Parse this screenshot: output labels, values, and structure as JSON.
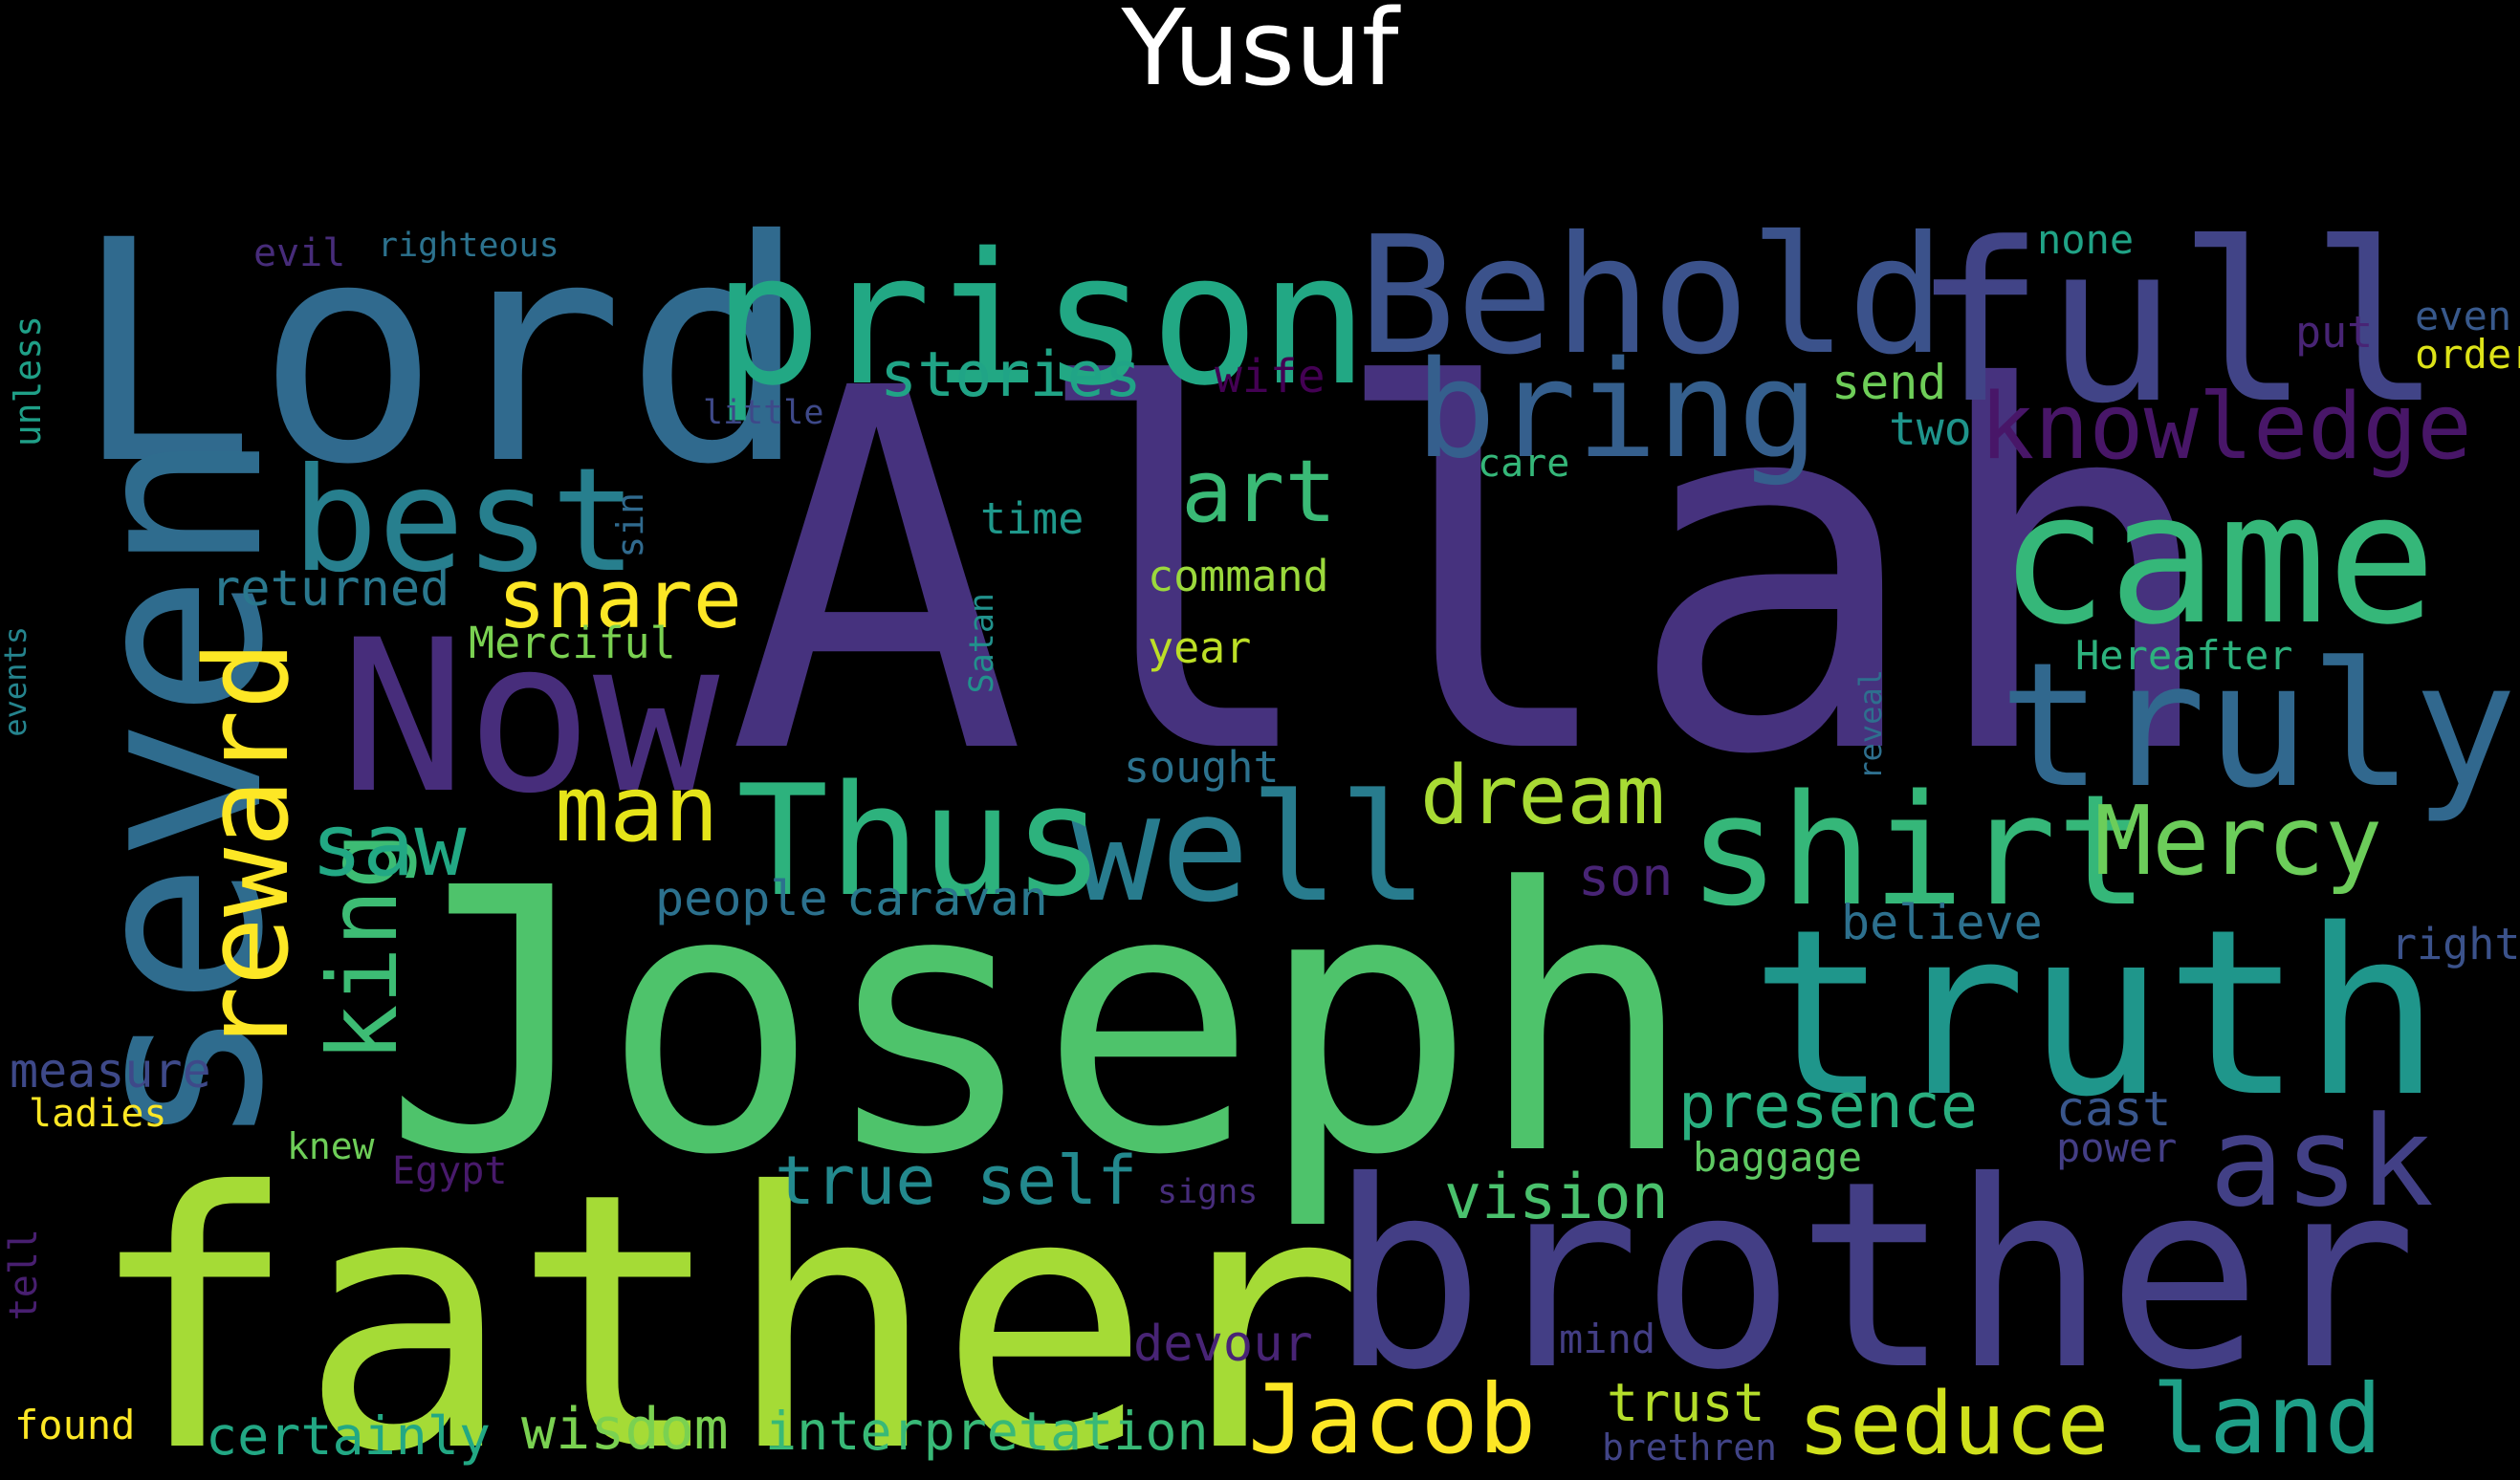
{
  "title": "Yusuf",
  "words": [
    {
      "text": "Allah",
      "color": "#46327e"
    },
    {
      "text": "Joseph",
      "color": "#4ec36b"
    },
    {
      "text": "father",
      "color": "#a5db36"
    },
    {
      "text": "brother",
      "color": "#433e85"
    },
    {
      "text": "Lord",
      "color": "#306a8e"
    },
    {
      "text": "seven",
      "color": "#2f6c8e"
    },
    {
      "text": "truth",
      "color": "#1f968b"
    },
    {
      "text": "prison",
      "color": "#22a884"
    },
    {
      "text": "full",
      "color": "#414487"
    },
    {
      "text": "Behold",
      "color": "#3b528b"
    },
    {
      "text": "came",
      "color": "#35b779"
    },
    {
      "text": "truly",
      "color": "#31688e"
    },
    {
      "text": "Now",
      "color": "#472d7b"
    },
    {
      "text": "bring",
      "color": "#355f8d"
    },
    {
      "text": "best",
      "color": "#277f8e"
    },
    {
      "text": "well",
      "color": "#287c8e"
    },
    {
      "text": "Thus",
      "color": "#2db27d"
    },
    {
      "text": "shirt",
      "color": "#35b779"
    },
    {
      "text": "reward",
      "color": "#fde725"
    },
    {
      "text": "ask",
      "color": "#424086"
    },
    {
      "text": "Mercy",
      "color": "#6ccd5a"
    },
    {
      "text": "knowledge",
      "color": "#481668"
    },
    {
      "text": "king",
      "color": "#3dbc74"
    },
    {
      "text": "Jacob",
      "color": "#fde725"
    },
    {
      "text": "land",
      "color": "#1fa088"
    },
    {
      "text": "seduce",
      "color": "#d0e11c"
    },
    {
      "text": "art",
      "color": "#3aba76"
    },
    {
      "text": "saw",
      "color": "#22a884"
    },
    {
      "text": "snare",
      "color": "#fde725"
    },
    {
      "text": "man",
      "color": "#e5e419"
    },
    {
      "text": "dream",
      "color": "#a8db34"
    },
    {
      "text": "stories",
      "color": "#20a486"
    },
    {
      "text": "presence",
      "color": "#29af7f"
    },
    {
      "text": "true self",
      "color": "#23898e"
    },
    {
      "text": "vision",
      "color": "#4ac16d"
    },
    {
      "text": "wisdom",
      "color": "#7ad151"
    },
    {
      "text": "interpretation",
      "color": "#38b977"
    },
    {
      "text": "certainly",
      "color": "#22a884"
    },
    {
      "text": "trust",
      "color": "#b5de2b"
    },
    {
      "text": "returned",
      "color": "#2a788e"
    },
    {
      "text": "measure",
      "color": "#3e4989"
    },
    {
      "text": "son",
      "color": "#482475"
    },
    {
      "text": "people",
      "color": "#2c718e"
    },
    {
      "text": "caravan",
      "color": "#2a788e"
    },
    {
      "text": "believe",
      "color": "#2d708e"
    },
    {
      "text": "devour",
      "color": "#482475"
    },
    {
      "text": "wife",
      "color": "#440154"
    },
    {
      "text": "send",
      "color": "#6ece58"
    },
    {
      "text": "two",
      "color": "#1f948c"
    },
    {
      "text": "command",
      "color": "#9bd93c"
    },
    {
      "text": "time",
      "color": "#1f988b"
    },
    {
      "text": "year",
      "color": "#bddf26"
    },
    {
      "text": "Merciful",
      "color": "#7ad151"
    },
    {
      "text": "Hereafter",
      "color": "#2db27d"
    },
    {
      "text": "cast",
      "color": "#39568c"
    },
    {
      "text": "power",
      "color": "#433e85"
    },
    {
      "text": "baggage",
      "color": "#5ec962"
    },
    {
      "text": "right",
      "color": "#3b528b"
    },
    {
      "text": "put",
      "color": "#482475"
    },
    {
      "text": "even",
      "color": "#38598c"
    },
    {
      "text": "order",
      "color": "#dde318"
    },
    {
      "text": "none",
      "color": "#20a386"
    },
    {
      "text": "care",
      "color": "#35b779"
    },
    {
      "text": "sought",
      "color": "#2c728e"
    },
    {
      "text": "mind",
      "color": "#433e85"
    },
    {
      "text": "found",
      "color": "#fde725"
    },
    {
      "text": "ladies",
      "color": "#fde725"
    },
    {
      "text": "knew",
      "color": "#6ece58"
    },
    {
      "text": "Egypt",
      "color": "#481a6c"
    },
    {
      "text": "signs",
      "color": "#472d7b"
    },
    {
      "text": "evil",
      "color": "#472c7a"
    },
    {
      "text": "righteous",
      "color": "#2c728e"
    },
    {
      "text": "little",
      "color": "#3e4989"
    },
    {
      "text": "brethren",
      "color": "#414487"
    },
    {
      "text": "unless",
      "color": "#1fa088"
    },
    {
      "text": "sin",
      "color": "#306a8e"
    },
    {
      "text": "Satan",
      "color": "#21918c"
    },
    {
      "text": "events",
      "color": "#25848e"
    },
    {
      "text": "tell",
      "color": "#481f70"
    },
    {
      "text": "reveal",
      "color": "#2e6f8e"
    }
  ]
}
